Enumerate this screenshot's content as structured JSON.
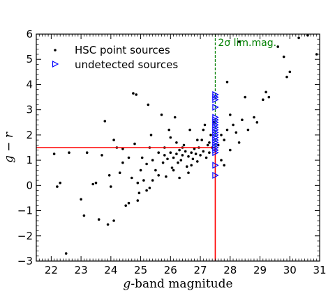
{
  "chart_data": {
    "type": "scatter",
    "title": "",
    "xlabel_italic": "g",
    "xlabel_rest": "-band magnitude",
    "ylabel_parts": [
      "g",
      " − ",
      "r"
    ],
    "xlim": [
      21.5,
      31
    ],
    "ylim": [
      -3,
      6
    ],
    "xticks": [
      "22",
      "23",
      "24",
      "25",
      "26",
      "27",
      "28",
      "29",
      "30",
      "31"
    ],
    "yticks": [
      "−3",
      "−2",
      "−1",
      "0",
      "1",
      "2",
      "3",
      "4",
      "5",
      "6"
    ],
    "grid": false,
    "legend": {
      "placement": "top-left",
      "entries": [
        {
          "label": "HSC point sources",
          "marker": "dot",
          "color": "#000000"
        },
        {
          "label": "undetected sources",
          "marker": "triangle-right-open",
          "color": "#0000ff"
        }
      ]
    },
    "reference_lines": {
      "limiting_magnitude_x": 27.5,
      "color_cut_y": 1.5,
      "red_color": "#ff0000",
      "green_color": "#008000"
    },
    "annotation": {
      "text_sigma": "2σ",
      "text_rest": " lim.mag.",
      "x": 27.5
    },
    "series": [
      {
        "name": "HSC point sources",
        "marker": "dot",
        "color": "#000000",
        "points": [
          [
            22.1,
            1.25
          ],
          [
            22.2,
            -0.05
          ],
          [
            22.3,
            0.1
          ],
          [
            22.5,
            -2.7
          ],
          [
            22.6,
            1.3
          ],
          [
            23.0,
            -0.55
          ],
          [
            23.1,
            -1.2
          ],
          [
            23.2,
            1.3
          ],
          [
            23.4,
            0.05
          ],
          [
            23.5,
            0.1
          ],
          [
            23.6,
            -1.35
          ],
          [
            23.7,
            1.2
          ],
          [
            23.8,
            2.55
          ],
          [
            23.9,
            -1.55
          ],
          [
            23.95,
            0.4
          ],
          [
            24.0,
            -0.05
          ],
          [
            24.1,
            -1.4
          ],
          [
            24.1,
            1.8
          ],
          [
            24.2,
            1.5
          ],
          [
            24.3,
            0.5
          ],
          [
            24.4,
            1.45
          ],
          [
            24.5,
            -0.8
          ],
          [
            24.6,
            -0.7
          ],
          [
            24.7,
            0.3
          ],
          [
            24.75,
            3.65
          ],
          [
            24.8,
            1.65
          ],
          [
            24.85,
            3.6
          ],
          [
            24.9,
            0.1
          ],
          [
            24.95,
            -0.3
          ],
          [
            25.0,
            0.6
          ],
          [
            25.05,
            1.1
          ],
          [
            25.1,
            0.2
          ],
          [
            25.2,
            0.85
          ],
          [
            25.25,
            3.2
          ],
          [
            25.3,
            -0.1
          ],
          [
            25.35,
            2.0
          ],
          [
            25.4,
            1.0
          ],
          [
            25.5,
            0.6
          ],
          [
            25.6,
            1.3
          ],
          [
            25.7,
            2.8
          ],
          [
            25.75,
            0.9
          ],
          [
            25.8,
            1.2
          ],
          [
            25.85,
            0.35
          ],
          [
            25.9,
            1.05
          ],
          [
            25.95,
            2.2
          ],
          [
            26.0,
            1.3
          ],
          [
            26.05,
            0.7
          ],
          [
            26.1,
            1.1
          ],
          [
            26.15,
            2.7
          ],
          [
            26.2,
            1.25
          ],
          [
            26.25,
            0.9
          ],
          [
            26.3,
            1.4
          ],
          [
            26.35,
            1.0
          ],
          [
            26.4,
            1.2
          ],
          [
            26.45,
            1.6
          ],
          [
            26.5,
            1.35
          ],
          [
            26.55,
            0.75
          ],
          [
            26.6,
            1.15
          ],
          [
            26.65,
            2.2
          ],
          [
            26.7,
            1.3
          ],
          [
            26.75,
            1.05
          ],
          [
            26.8,
            1.45
          ],
          [
            26.85,
            1.25
          ],
          [
            26.9,
            0.95
          ],
          [
            26.95,
            1.5
          ],
          [
            27.0,
            1.2
          ],
          [
            27.05,
            1.8
          ],
          [
            27.1,
            1.35
          ],
          [
            27.15,
            2.4
          ],
          [
            27.2,
            1.1
          ],
          [
            27.25,
            1.6
          ],
          [
            27.3,
            1.3
          ],
          [
            27.35,
            2.0
          ],
          [
            27.4,
            1.5
          ],
          [
            27.45,
            2.5
          ],
          [
            25.6,
            0.4
          ],
          [
            25.4,
            0.2
          ],
          [
            25.2,
            -0.2
          ],
          [
            24.9,
            -0.6
          ],
          [
            26.3,
            0.3
          ],
          [
            26.6,
            0.5
          ],
          [
            26.2,
            1.7
          ],
          [
            26.0,
            1.9
          ],
          [
            25.8,
            1.5
          ],
          [
            25.3,
            1.5
          ],
          [
            24.6,
            1.1
          ],
          [
            24.4,
            0.9
          ],
          [
            26.9,
            1.8
          ],
          [
            27.1,
            2.2
          ],
          [
            27.3,
            1.7
          ],
          [
            26.7,
            0.8
          ],
          [
            26.4,
            1.5
          ],
          [
            26.1,
            0.6
          ],
          [
            27.6,
            1.6
          ],
          [
            27.7,
            2.0
          ],
          [
            27.8,
            1.8
          ],
          [
            27.9,
            2.2
          ],
          [
            28.0,
            1.4
          ],
          [
            28.1,
            2.4
          ],
          [
            28.2,
            2.1
          ],
          [
            28.3,
            1.7
          ],
          [
            28.4,
            2.6
          ],
          [
            28.5,
            3.5
          ],
          [
            28.6,
            2.2
          ],
          [
            28.8,
            2.7
          ],
          [
            28.9,
            2.5
          ],
          [
            29.1,
            3.4
          ],
          [
            29.2,
            3.7
          ],
          [
            29.3,
            3.5
          ],
          [
            29.6,
            5.5
          ],
          [
            29.8,
            5.1
          ],
          [
            29.9,
            4.3
          ],
          [
            30.0,
            4.5
          ],
          [
            30.3,
            5.85
          ],
          [
            30.6,
            5.95
          ],
          [
            30.9,
            5.2
          ],
          [
            28.3,
            5.7
          ],
          [
            27.9,
            4.1
          ],
          [
            27.7,
            1.0
          ],
          [
            27.8,
            0.8
          ],
          [
            28.0,
            2.8
          ]
        ]
      },
      {
        "name": "undetected sources",
        "marker": "triangle-right-open",
        "color": "#0000ff",
        "points": [
          [
            27.5,
            3.6
          ],
          [
            27.5,
            3.5
          ],
          [
            27.5,
            3.4
          ],
          [
            27.5,
            3.1
          ],
          [
            27.5,
            2.7
          ],
          [
            27.5,
            2.6
          ],
          [
            27.5,
            2.5
          ],
          [
            27.5,
            2.4
          ],
          [
            27.5,
            2.3
          ],
          [
            27.5,
            2.2
          ],
          [
            27.5,
            2.1
          ],
          [
            27.5,
            2.0
          ],
          [
            27.5,
            1.9
          ],
          [
            27.5,
            1.8
          ],
          [
            27.5,
            1.7
          ],
          [
            27.5,
            1.6
          ],
          [
            27.5,
            1.5
          ],
          [
            27.5,
            1.4
          ],
          [
            27.5,
            1.3
          ],
          [
            27.5,
            0.8
          ],
          [
            27.5,
            0.4
          ]
        ]
      }
    ]
  }
}
